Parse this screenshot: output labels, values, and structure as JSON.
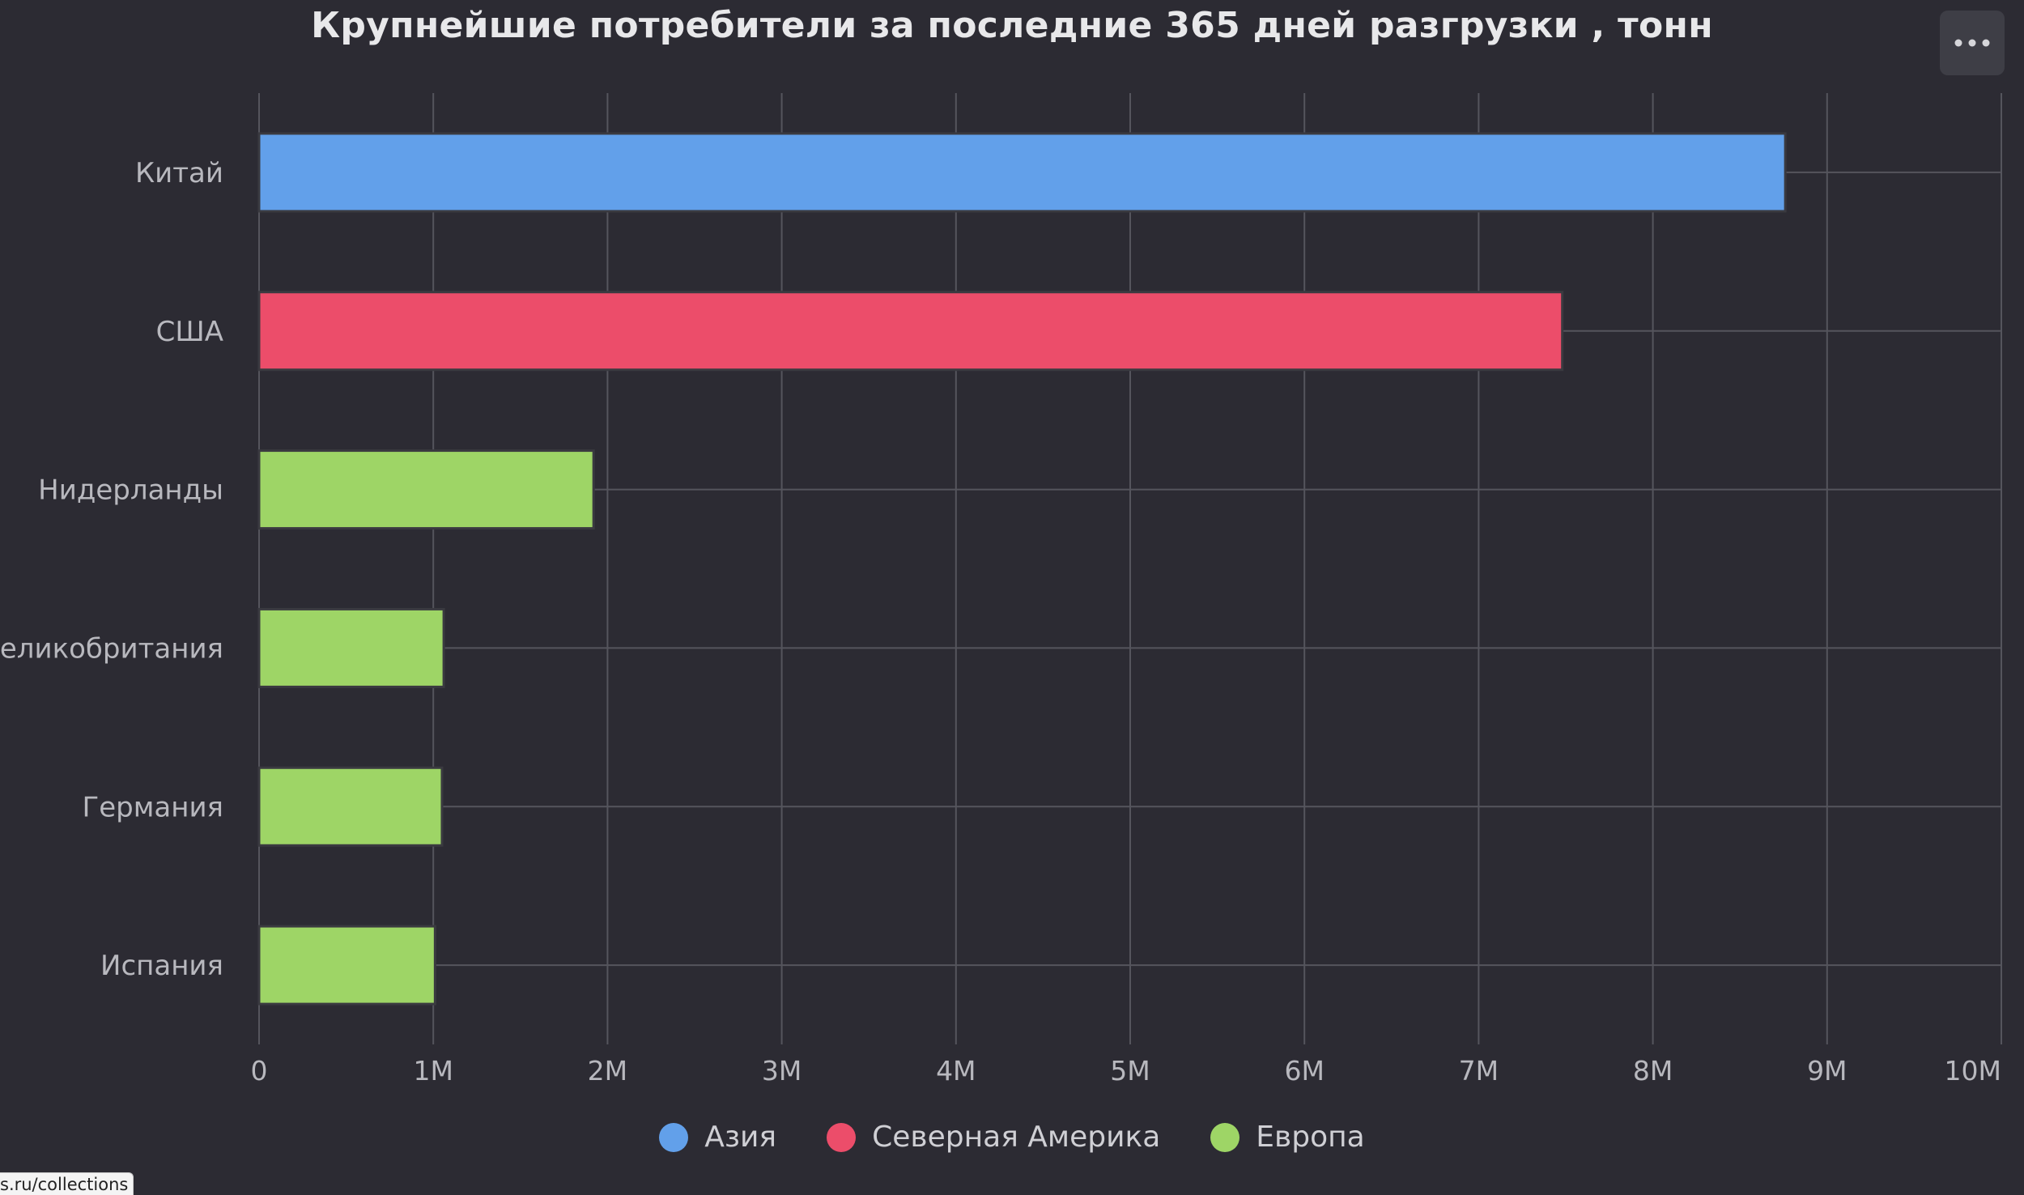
{
  "header": {
    "title": "Крупнейшие потребители за последние 365 дней разгрузки , тонн",
    "menu_icon": "ellipsis-icon"
  },
  "colors": {
    "background": "#2c2b33",
    "grid": "#55555d",
    "axis_text": "#b8b8be",
    "asia": "#62a0ea",
    "north_america": "#ec4d6a",
    "europe": "#9ed566"
  },
  "chart_data": {
    "type": "bar",
    "orientation": "horizontal",
    "title": "Крупнейшие потребители за последние 365 дней разгрузки , тонн",
    "xlabel": "",
    "ylabel": "",
    "xlim": [
      0,
      10000000
    ],
    "categories": [
      "Китай",
      "США",
      "Нидерланды",
      "Великобритания",
      "Германия",
      "Испания"
    ],
    "values": [
      8760000,
      7480000,
      1920000,
      1060000,
      1050000,
      1010000
    ],
    "bar_series": [
      "Азия",
      "Северная Америка",
      "Европа",
      "Европа",
      "Европа",
      "Европа"
    ],
    "series": [
      {
        "name": "Азия",
        "color": "#62a0ea"
      },
      {
        "name": "Северная Америка",
        "color": "#ec4d6a"
      },
      {
        "name": "Европа",
        "color": "#9ed566"
      }
    ],
    "x_ticks": [
      0,
      1000000,
      2000000,
      3000000,
      4000000,
      5000000,
      6000000,
      7000000,
      8000000,
      9000000,
      10000000
    ],
    "x_tick_labels": [
      "0",
      "1M",
      "2M",
      "3M",
      "4M",
      "5M",
      "6M",
      "7M",
      "8M",
      "9M",
      "10M"
    ],
    "grid": true,
    "legend_position": "bottom-center"
  },
  "legend": {
    "items": [
      {
        "label": "Азия",
        "color": "#62a0ea"
      },
      {
        "label": "Северная Америка",
        "color": "#ec4d6a"
      },
      {
        "label": "Европа",
        "color": "#9ed566"
      }
    ]
  },
  "status_bar": {
    "url_text": "s.ru/collections"
  }
}
